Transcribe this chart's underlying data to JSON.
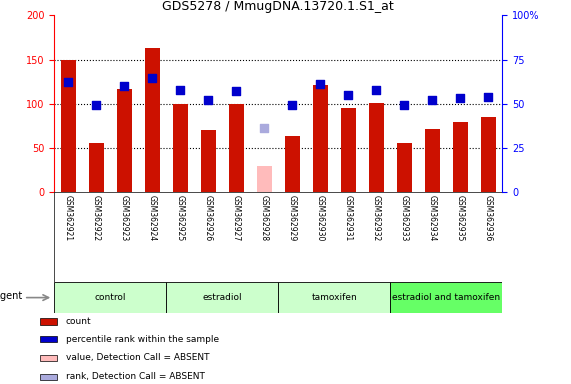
{
  "title": "GDS5278 / MmugDNA.13720.1.S1_at",
  "samples": [
    "GSM362921",
    "GSM362922",
    "GSM362923",
    "GSM362924",
    "GSM362925",
    "GSM362926",
    "GSM362927",
    "GSM362928",
    "GSM362929",
    "GSM362930",
    "GSM362931",
    "GSM362932",
    "GSM362933",
    "GSM362934",
    "GSM362935",
    "GSM362936"
  ],
  "counts": [
    150,
    55,
    117,
    163,
    100,
    70,
    100,
    30,
    63,
    121,
    95,
    101,
    56,
    71,
    79,
    85
  ],
  "ranks": [
    125,
    99,
    120,
    129,
    115,
    104,
    114,
    72,
    98,
    122,
    110,
    115,
    99,
    104,
    106,
    108
  ],
  "absent_count_indices": [
    7
  ],
  "absent_rank_indices": [
    7
  ],
  "groups": [
    {
      "label": "control",
      "start": 0,
      "end": 3,
      "color": "#ccffcc"
    },
    {
      "label": "estradiol",
      "start": 4,
      "end": 7,
      "color": "#ccffcc"
    },
    {
      "label": "tamoxifen",
      "start": 8,
      "end": 11,
      "color": "#ccffcc"
    },
    {
      "label": "estradiol and tamoxifen",
      "start": 12,
      "end": 15,
      "color": "#66ff66"
    }
  ],
  "ylim_left": [
    0,
    200
  ],
  "ylim_right": [
    0,
    100
  ],
  "yticks_left": [
    0,
    50,
    100,
    150,
    200
  ],
  "ytick_labels_left": [
    "0",
    "50",
    "100",
    "150",
    "200"
  ],
  "yticks_right": [
    0,
    25,
    50,
    75,
    100
  ],
  "ytick_labels_right": [
    "0",
    "25",
    "50",
    "75",
    "100%"
  ],
  "bar_color_present": "#cc1100",
  "bar_color_absent": "#ffbbbb",
  "rank_color_present": "#0000cc",
  "rank_color_absent": "#aaaadd",
  "bar_width": 0.55,
  "rank_marker_size": 28,
  "background_color": "#ffffff",
  "sample_label_bg": "#cccccc",
  "legend_items": [
    {
      "label": "count",
      "color": "#cc1100"
    },
    {
      "label": "percentile rank within the sample",
      "color": "#0000cc"
    },
    {
      "label": "value, Detection Call = ABSENT",
      "color": "#ffbbbb"
    },
    {
      "label": "rank, Detection Call = ABSENT",
      "color": "#aaaadd"
    }
  ]
}
